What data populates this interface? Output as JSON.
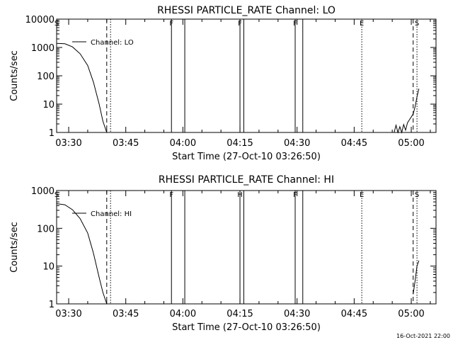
{
  "chart_data": [
    {
      "type": "line",
      "title": "RHESSI PARTICLE_RATE Channel: LO",
      "xlabel": "Start Time (27-Oct-10 03:26:50)",
      "ylabel": "Counts/sec",
      "y_scale": "log",
      "ylim": [
        1,
        10000
      ],
      "xlim": [
        "03:26:50",
        "05:06:30"
      ],
      "x_ticks": [
        "03:30",
        "03:45",
        "04:00",
        "04:15",
        "04:30",
        "04:45",
        "05:00"
      ],
      "y_ticks": [
        "1",
        "10",
        "100",
        "1000",
        "10000"
      ],
      "legend": "top-left",
      "series": [
        {
          "name": "Channel: LO",
          "points": [
            [
              "03:26:50",
              1400
            ],
            [
              "03:29:00",
              1350
            ],
            [
              "03:31:00",
              1050
            ],
            [
              "03:33:00",
              600
            ],
            [
              "03:35:00",
              230
            ],
            [
              "03:36:30",
              60
            ],
            [
              "03:38:00",
              10
            ],
            [
              "03:39:00",
              2.5
            ],
            [
              "03:40:00",
              1
            ],
            [
              "04:55:30",
              1
            ],
            [
              "04:56:00",
              1.8
            ],
            [
              "04:56:30",
              1
            ],
            [
              "04:57:00",
              1.6
            ],
            [
              "04:57:30",
              1
            ],
            [
              "04:58:00",
              1.9
            ],
            [
              "04:58:30",
              1.2
            ],
            [
              "04:59:00",
              2.2
            ],
            [
              "04:59:30",
              2.8
            ],
            [
              "05:00:00",
              3.5
            ],
            [
              "05:00:30",
              4.5
            ],
            [
              "05:01:00",
              8
            ],
            [
              "05:01:30",
              18
            ],
            [
              "05:02:00",
              35
            ]
          ]
        }
      ],
      "event_lines": [
        {
          "label": "S",
          "time": "03:26:50",
          "style": "dotted"
        },
        {
          "label": "",
          "time": "03:40:00",
          "style": "dashed"
        },
        {
          "label": "",
          "time": "03:41:00",
          "style": "dotted"
        },
        {
          "label": "F",
          "time": "03:57:00",
          "style": "solid"
        },
        {
          "label": "",
          "time": "04:00:30",
          "style": "solid"
        },
        {
          "label": "F",
          "time": "04:15:00",
          "style": "solid"
        },
        {
          "label": "",
          "time": "04:16:00",
          "style": "solid"
        },
        {
          "label": "F",
          "time": "04:29:30",
          "style": "solid"
        },
        {
          "label": "",
          "time": "04:31:30",
          "style": "solid"
        },
        {
          "label": "E",
          "time": "04:47:00",
          "style": "dotted"
        },
        {
          "label": "",
          "time": "05:00:30",
          "style": "dashed"
        },
        {
          "label": "S",
          "time": "05:01:30",
          "style": "dotted"
        }
      ]
    },
    {
      "type": "line",
      "title": "RHESSI PARTICLE_RATE Channel: HI",
      "xlabel": "Start Time (27-Oct-10 03:26:50)",
      "ylabel": "Counts/sec",
      "y_scale": "log",
      "ylim": [
        1,
        1000
      ],
      "xlim": [
        "03:26:50",
        "05:06:30"
      ],
      "x_ticks": [
        "03:30",
        "03:45",
        "04:00",
        "04:15",
        "04:30",
        "04:45",
        "05:00"
      ],
      "y_ticks": [
        "1",
        "10",
        "100",
        "1000"
      ],
      "legend": "top-left",
      "series": [
        {
          "name": "Channel: HI",
          "points": [
            [
              "03:26:50",
              450
            ],
            [
              "03:29:00",
              420
            ],
            [
              "03:31:00",
              310
            ],
            [
              "03:33:00",
              180
            ],
            [
              "03:35:00",
              75
            ],
            [
              "03:36:30",
              22
            ],
            [
              "03:38:00",
              5
            ],
            [
              "03:39:00",
              2
            ],
            [
              "03:40:00",
              1
            ],
            [
              "05:00:30",
              1.8
            ],
            [
              "05:01:00",
              4
            ],
            [
              "05:01:30",
              10
            ],
            [
              "05:02:00",
              14
            ]
          ]
        }
      ],
      "event_lines": [
        {
          "label": "S",
          "time": "03:26:50",
          "style": "dotted"
        },
        {
          "label": "",
          "time": "03:40:00",
          "style": "dashed"
        },
        {
          "label": "",
          "time": "03:41:00",
          "style": "dotted"
        },
        {
          "label": "F",
          "time": "03:57:00",
          "style": "solid"
        },
        {
          "label": "",
          "time": "04:00:30",
          "style": "solid"
        },
        {
          "label": "H",
          "time": "04:15:00",
          "style": "solid"
        },
        {
          "label": "",
          "time": "04:16:00",
          "style": "solid"
        },
        {
          "label": "F",
          "time": "04:29:30",
          "style": "solid"
        },
        {
          "label": "",
          "time": "04:31:30",
          "style": "solid"
        },
        {
          "label": "E",
          "time": "04:47:00",
          "style": "dotted"
        },
        {
          "label": "",
          "time": "05:00:30",
          "style": "dashed"
        },
        {
          "label": "S",
          "time": "05:01:30",
          "style": "dotted"
        }
      ]
    }
  ],
  "footer": {
    "timestamp": "16-Oct-2021 22:00"
  }
}
